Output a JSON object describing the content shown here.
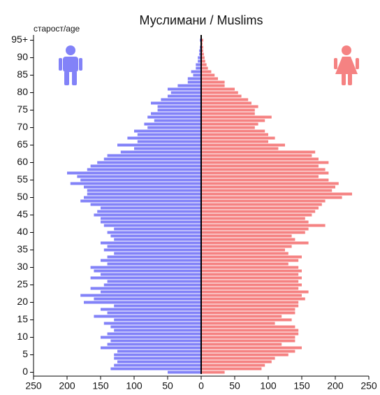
{
  "chart_data": {
    "type": "pyramid",
    "title": "Муслимани / Muslims",
    "ylabel": "старост/age",
    "categories": [
      0,
      1,
      2,
      3,
      4,
      5,
      6,
      7,
      8,
      9,
      10,
      11,
      12,
      13,
      14,
      15,
      16,
      17,
      18,
      19,
      20,
      21,
      22,
      23,
      24,
      25,
      26,
      27,
      28,
      29,
      30,
      31,
      32,
      33,
      34,
      35,
      36,
      37,
      38,
      39,
      40,
      41,
      42,
      43,
      44,
      45,
      46,
      47,
      48,
      49,
      50,
      51,
      52,
      53,
      54,
      55,
      56,
      57,
      58,
      59,
      60,
      61,
      62,
      63,
      64,
      65,
      66,
      67,
      68,
      69,
      70,
      71,
      72,
      73,
      74,
      75,
      76,
      77,
      78,
      79,
      80,
      81,
      82,
      83,
      84,
      85,
      86,
      87,
      88,
      89,
      90,
      91,
      92,
      93,
      94,
      95
    ],
    "series": [
      {
        "color": "#8282f8",
        "values": [
          -50,
          -135,
          -130,
          -125,
          -130,
          -130,
          -125,
          -150,
          -140,
          -135,
          -150,
          -140,
          -130,
          -135,
          -145,
          -130,
          -160,
          -140,
          -150,
          -130,
          -175,
          -160,
          -180,
          -150,
          -165,
          -145,
          -140,
          -165,
          -150,
          -160,
          -165,
          -140,
          -150,
          -140,
          -130,
          -145,
          -140,
          -150,
          -130,
          -135,
          -140,
          -130,
          -145,
          -150,
          -150,
          -160,
          -155,
          -150,
          -165,
          -180,
          -175,
          -170,
          -170,
          -175,
          -195,
          -180,
          -185,
          -200,
          -170,
          -165,
          -155,
          -145,
          -140,
          -120,
          -100,
          -125,
          -95,
          -110,
          -95,
          -100,
          -80,
          -85,
          -70,
          -80,
          -75,
          -65,
          -65,
          -75,
          -60,
          -50,
          -45,
          -50,
          -35,
          -20,
          -20,
          -12,
          -15,
          -8,
          -8,
          -5,
          -5,
          -3,
          -3,
          -2,
          -1,
          -2
        ]
      },
      {
        "color": "#f58282",
        "values": [
          35,
          90,
          95,
          105,
          110,
          130,
          140,
          150,
          120,
          140,
          140,
          145,
          145,
          140,
          110,
          135,
          120,
          140,
          140,
          145,
          145,
          155,
          150,
          160,
          145,
          150,
          145,
          150,
          145,
          150,
          145,
          130,
          145,
          150,
          130,
          125,
          135,
          160,
          140,
          135,
          155,
          160,
          185,
          160,
          155,
          165,
          170,
          175,
          180,
          185,
          210,
          225,
          195,
          200,
          205,
          190,
          175,
          190,
          185,
          175,
          190,
          175,
          165,
          170,
          115,
          125,
          100,
          110,
          100,
          95,
          80,
          85,
          95,
          105,
          80,
          80,
          85,
          75,
          70,
          60,
          55,
          50,
          35,
          35,
          25,
          20,
          15,
          10,
          8,
          6,
          5,
          4,
          3,
          3,
          2,
          3
        ]
      }
    ],
    "xlim": [
      -250,
      250
    ],
    "xticks": [
      {
        "value": -250,
        "label": "250"
      },
      {
        "value": -200,
        "label": "200"
      },
      {
        "value": -150,
        "label": "150"
      },
      {
        "value": -100,
        "label": "100"
      },
      {
        "value": -50,
        "label": "50"
      },
      0,
      50,
      100,
      150,
      200,
      250
    ],
    "ylim": [
      -0.5,
      95.5
    ],
    "yticks": [
      0,
      5,
      10,
      15,
      20,
      25,
      30,
      35,
      40,
      45,
      50,
      55,
      60,
      65,
      70,
      75,
      80,
      85,
      90,
      {
        "value": 95,
        "label": "95+"
      }
    ]
  }
}
